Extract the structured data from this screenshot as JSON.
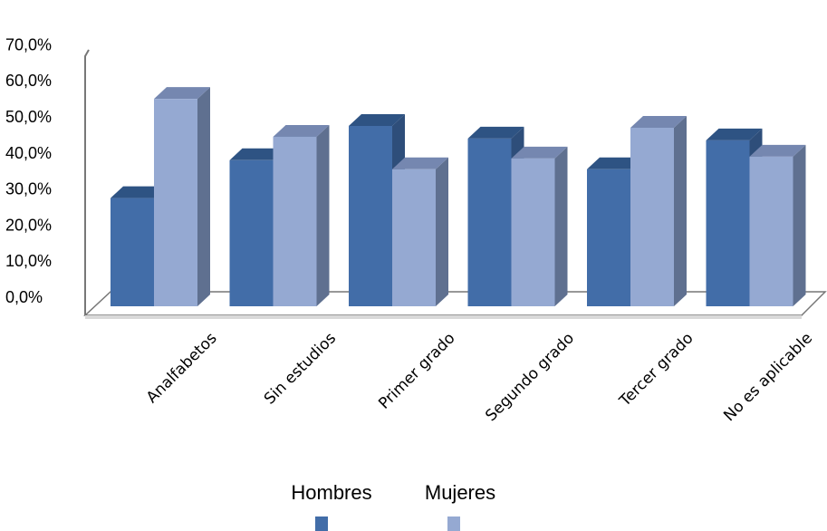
{
  "chart_data": {
    "type": "bar",
    "categories": [
      "Analfabetos",
      "Sin estudios",
      "Primer grado",
      "Segundo grado",
      "Tercer grado",
      "No es aplicable"
    ],
    "series": [
      {
        "name": "Hombres",
        "values": [
          30.0,
          40.5,
          50.0,
          46.5,
          38.0,
          46.0
        ]
      },
      {
        "name": "Mujeres",
        "values": [
          57.5,
          47.0,
          38.0,
          41.0,
          49.5,
          41.5
        ]
      }
    ],
    "y_ticks": [
      "0,0%",
      "10,0%",
      "20,0%",
      "30,0%",
      "40,0%",
      "50,0%",
      "60,0%",
      "70,0%"
    ],
    "ylim": [
      0,
      70
    ],
    "title": "",
    "xlabel": "",
    "ylabel": "",
    "legend_position": "bottom",
    "bar_style": "3d",
    "grid": false,
    "colors": {
      "Hombres": {
        "front": "#426DA8",
        "side": "#2E4E7A",
        "top": "#2E5383"
      },
      "Mujeres": {
        "front": "#95A9D2",
        "side": "#5F7090",
        "top": "#7587B0"
      },
      "floor_front": "#FFFFFF",
      "floor_side": "#D9D9D9",
      "axis": "#777777"
    }
  }
}
